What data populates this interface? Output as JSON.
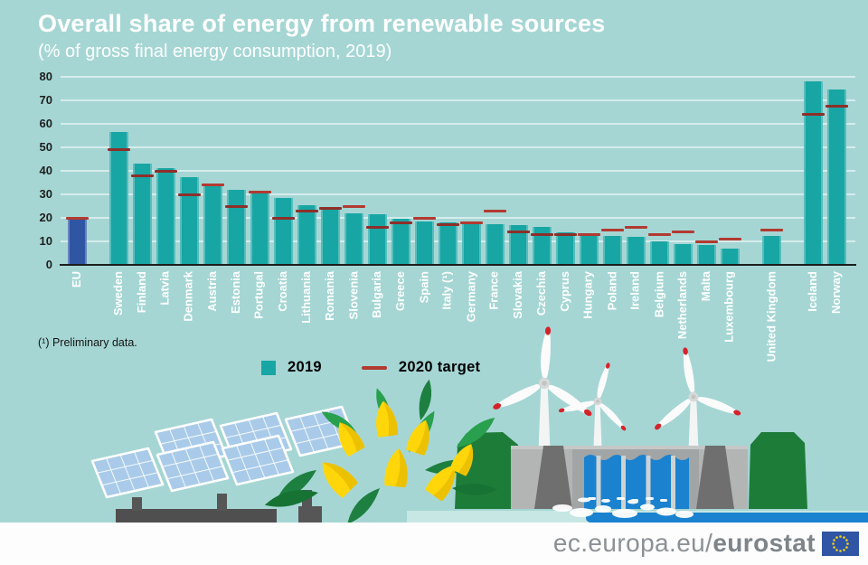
{
  "header": {
    "title": "Overall share of energy from renewable sources",
    "subtitle": "(% of gross final energy consumption, 2019)"
  },
  "notes": {
    "footnote": "(¹) Preliminary data."
  },
  "legend": {
    "items": [
      {
        "label": "2019",
        "swatch": "square",
        "color": "#17a6a4"
      },
      {
        "label": "2020 target",
        "swatch": "dash",
        "color": "#b23a31"
      }
    ]
  },
  "footer": {
    "url_regular": "ec.europa.eu/",
    "url_bold": "eurostat"
  },
  "colors": {
    "background": "#a5d6d4",
    "bar": "#17a6a4",
    "bar_eu": "#2e56a3",
    "target": "#b23a31",
    "target_on_bar": "#8e2f2a",
    "gridline": "#ffffff",
    "axis": "#1d1d1d",
    "flag_blue": "#2f55a4",
    "star_yellow": "#f7d117",
    "water_blue": "#1b82cf"
  },
  "decorations": {
    "icons": [
      "solar-panel-array-icon",
      "tulip-flowers-icon",
      "wind-turbine-icon",
      "hydro-dam-icon",
      "eu-flag-icon"
    ]
  },
  "chart_data": {
    "type": "bar",
    "title": "Overall share of energy from renewable sources",
    "subtitle": "(% of gross final energy consumption, 2019)",
    "xlabel": "",
    "ylabel": "% of gross final energy consumption",
    "ylim": [
      0,
      80
    ],
    "yticks": [
      0,
      10,
      20,
      30,
      40,
      50,
      60,
      70,
      80
    ],
    "grid": true,
    "legend_position": "bottom",
    "highlight_category": "EU",
    "group_breaks_after": [
      "EU",
      "Luxembourg",
      "United Kingdom"
    ],
    "categories": [
      "EU",
      "Sweden",
      "Finland",
      "Latvia",
      "Denmark",
      "Austria",
      "Estonia",
      "Portugal",
      "Croatia",
      "Lithuania",
      "Romania",
      "Slovenia",
      "Bulgaria",
      "Greece",
      "Spain",
      "Italy (¹)",
      "Germany",
      "France",
      "Slovakia",
      "Czechia",
      "Cyprus",
      "Hungary",
      "Poland",
      "Ireland",
      "Belgium",
      "Netherlands",
      "Malta",
      "Luxembourg",
      "United Kingdom",
      "Iceland",
      "Norway"
    ],
    "series": [
      {
        "name": "2019",
        "values": [
          19.7,
          56.4,
          43.1,
          41.0,
          37.2,
          33.6,
          31.9,
          30.6,
          28.5,
          25.5,
          24.3,
          22.0,
          21.6,
          19.7,
          18.4,
          18.2,
          17.4,
          17.2,
          16.9,
          16.2,
          13.8,
          12.6,
          12.2,
          12.0,
          9.9,
          8.8,
          8.5,
          7.0,
          12.3,
          78.2,
          74.6
        ]
      },
      {
        "name": "2020 target",
        "values": [
          20,
          49,
          38,
          40,
          30,
          34,
          25,
          31,
          20,
          23,
          24,
          25,
          16,
          18,
          20,
          17,
          18,
          23,
          14,
          13,
          13,
          13,
          15,
          16,
          13,
          14,
          10,
          11,
          15,
          64,
          67.5
        ]
      }
    ]
  }
}
